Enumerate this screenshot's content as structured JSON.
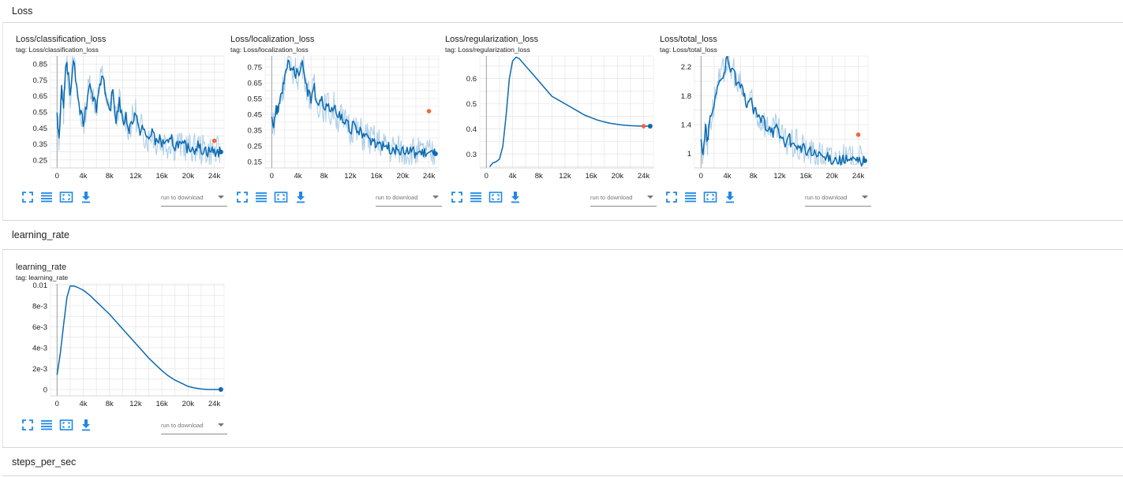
{
  "sections": [
    {
      "title": "Loss"
    },
    {
      "title": "learning_rate"
    },
    {
      "title": "steps_per_sec"
    }
  ],
  "controls": {
    "run_select": "run to download"
  },
  "colors": {
    "line": "#0b6ab0",
    "smoothed_raw": "#a9cde8",
    "latest": "#0b6ab0",
    "compare": "#f4663c",
    "grid": "#e0e0e0"
  },
  "icons": [
    "fit-domain-icon",
    "log-scale-icon",
    "toggle-expand-icon",
    "download-icon"
  ],
  "chart_data": [
    {
      "type": "line",
      "title": "Loss/classification_loss",
      "tag": "tag: Loss/classification_loss",
      "xlim": [
        -1000,
        25500
      ],
      "ylim": [
        0.2,
        0.9
      ],
      "xticks": [
        0,
        4000,
        8000,
        12000,
        16000,
        20000,
        24000
      ],
      "xtick_labels": [
        "0",
        "4k",
        "8k",
        "12k",
        "16k",
        "20k",
        "24k"
      ],
      "yticks": [
        0.25,
        0.35,
        0.45,
        0.55,
        0.65,
        0.75,
        0.85
      ],
      "ytick_labels": [
        "0.25",
        "0.35",
        "0.45",
        "0.55",
        "0.65",
        "0.75",
        "0.85"
      ],
      "series": [
        {
          "x": [
            0,
            300,
            700,
            1000,
            1300,
            1600,
            2000,
            2500,
            3000,
            3500,
            4000,
            4500,
            5000,
            5500,
            6000,
            6500,
            7000,
            7500,
            8000,
            8500,
            9000,
            9500,
            10000,
            10500,
            11000,
            11500,
            12000,
            12500,
            13000,
            13500,
            14000,
            14500,
            15000,
            15500,
            16000,
            16500,
            17000,
            17500,
            18000,
            18500,
            19000,
            19500,
            20000,
            20500,
            21000,
            21500,
            22000,
            22500,
            23000,
            23500,
            24000,
            24500,
            25000
          ],
          "y": [
            0.52,
            0.38,
            0.72,
            0.55,
            0.85,
            0.82,
            0.65,
            0.88,
            0.7,
            0.55,
            0.48,
            0.6,
            0.75,
            0.65,
            0.58,
            0.72,
            0.8,
            0.6,
            0.55,
            0.68,
            0.5,
            0.62,
            0.48,
            0.52,
            0.44,
            0.5,
            0.55,
            0.42,
            0.46,
            0.4,
            0.38,
            0.44,
            0.36,
            0.39,
            0.35,
            0.37,
            0.34,
            0.38,
            0.33,
            0.36,
            0.33,
            0.34,
            0.32,
            0.33,
            0.32,
            0.34,
            0.31,
            0.32,
            0.3,
            0.31,
            0.3,
            0.3,
            0.3
          ]
        }
      ],
      "compare_point": {
        "x": 24000,
        "y": 0.37
      },
      "raw_min": 0.22,
      "raw_max": 0.9
    },
    {
      "type": "line",
      "title": "Loss/localization_loss",
      "tag": "tag: Loss/localization_loss",
      "xlim": [
        -1000,
        25500
      ],
      "ylim": [
        0.11,
        0.82
      ],
      "xticks": [
        0,
        4000,
        8000,
        12000,
        16000,
        20000,
        24000
      ],
      "xtick_labels": [
        "0",
        "4k",
        "8k",
        "12k",
        "16k",
        "20k",
        "24k"
      ],
      "yticks": [
        0.15,
        0.25,
        0.35,
        0.45,
        0.55,
        0.65,
        0.75
      ],
      "ytick_labels": [
        "0.15",
        "0.25",
        "0.35",
        "0.45",
        "0.55",
        "0.65",
        "0.75"
      ],
      "series": [
        {
          "x": [
            0,
            300,
            700,
            1000,
            1300,
            1600,
            2000,
            2500,
            3000,
            3500,
            4000,
            4500,
            5000,
            5500,
            6000,
            6500,
            7000,
            7500,
            8000,
            8500,
            9000,
            9500,
            10000,
            10500,
            11000,
            11500,
            12000,
            12500,
            13000,
            13500,
            14000,
            14500,
            15000,
            15500,
            16000,
            16500,
            17000,
            17500,
            18000,
            18500,
            19000,
            19500,
            20000,
            20500,
            21000,
            21500,
            22000,
            22500,
            23000,
            23500,
            24000,
            24500,
            25000
          ],
          "y": [
            0.45,
            0.38,
            0.5,
            0.46,
            0.55,
            0.6,
            0.68,
            0.78,
            0.75,
            0.72,
            0.7,
            0.78,
            0.72,
            0.6,
            0.55,
            0.62,
            0.5,
            0.56,
            0.48,
            0.52,
            0.45,
            0.5,
            0.42,
            0.45,
            0.38,
            0.42,
            0.35,
            0.38,
            0.33,
            0.35,
            0.3,
            0.33,
            0.28,
            0.3,
            0.26,
            0.28,
            0.24,
            0.26,
            0.23,
            0.24,
            0.22,
            0.23,
            0.21,
            0.22,
            0.21,
            0.22,
            0.2,
            0.21,
            0.2,
            0.21,
            0.2,
            0.2,
            0.2
          ]
        }
      ],
      "compare_point": {
        "x": 24000,
        "y": 0.47
      },
      "raw_min": 0.13,
      "raw_max": 0.82
    },
    {
      "type": "line",
      "title": "Loss/regularization_loss",
      "tag": "tag: Loss/regularization_loss",
      "xlim": [
        -1000,
        25500
      ],
      "ylim": [
        0.245,
        0.69
      ],
      "xticks": [
        0,
        4000,
        8000,
        12000,
        16000,
        20000,
        24000
      ],
      "xtick_labels": [
        "0",
        "4k",
        "8k",
        "12k",
        "16k",
        "20k",
        "24k"
      ],
      "yticks": [
        0.3,
        0.4,
        0.5,
        0.6
      ],
      "ytick_labels": [
        "0.3",
        "0.4",
        "0.5",
        "0.6"
      ],
      "series": [
        {
          "x": [
            500,
            1000,
            1500,
            2000,
            2500,
            3000,
            3500,
            4000,
            4500,
            5000,
            5500,
            6000,
            7000,
            8000,
            9000,
            10000,
            11000,
            12000,
            13000,
            14000,
            15000,
            16000,
            17000,
            18000,
            19000,
            20000,
            21000,
            22000,
            23000,
            24000,
            25000
          ],
          "y": [
            0.25,
            0.265,
            0.27,
            0.28,
            0.33,
            0.45,
            0.6,
            0.67,
            0.685,
            0.68,
            0.665,
            0.65,
            0.62,
            0.59,
            0.56,
            0.53,
            0.515,
            0.5,
            0.485,
            0.47,
            0.455,
            0.445,
            0.435,
            0.428,
            0.422,
            0.418,
            0.415,
            0.413,
            0.412,
            0.411,
            0.411
          ]
        }
      ],
      "compare_point": {
        "x": 24000,
        "y": 0.411
      },
      "raw_min": null,
      "raw_max": null
    },
    {
      "type": "line",
      "title": "Loss/total_loss",
      "tag": "tag: Loss/total_loss",
      "xlim": [
        -1000,
        25500
      ],
      "ylim": [
        0.8,
        2.35
      ],
      "xticks": [
        0,
        4000,
        8000,
        12000,
        16000,
        20000,
        24000
      ],
      "xtick_labels": [
        "0",
        "4k",
        "8k",
        "12k",
        "16k",
        "20k",
        "24k"
      ],
      "yticks": [
        1,
        1.4,
        1.8,
        2.2
      ],
      "ytick_labels": [
        "1",
        "1.4",
        "1.8",
        "2.2"
      ],
      "series": [
        {
          "x": [
            0,
            300,
            700,
            1000,
            1300,
            1600,
            2000,
            2500,
            3000,
            3500,
            4000,
            4500,
            5000,
            5500,
            6000,
            6500,
            7000,
            7500,
            8000,
            8500,
            9000,
            9500,
            10000,
            10500,
            11000,
            11500,
            12000,
            12500,
            13000,
            13500,
            14000,
            14500,
            15000,
            15500,
            16000,
            16500,
            17000,
            17500,
            18000,
            18500,
            19000,
            19500,
            20000,
            20500,
            21000,
            21500,
            22000,
            22500,
            23000,
            23500,
            24000,
            24500,
            25000
          ],
          "y": [
            1.25,
            0.95,
            1.35,
            1.15,
            1.45,
            1.5,
            1.7,
            1.95,
            2.0,
            2.15,
            2.3,
            2.1,
            2.2,
            1.9,
            1.95,
            1.8,
            1.7,
            1.75,
            1.6,
            1.55,
            1.45,
            1.5,
            1.35,
            1.4,
            1.3,
            1.35,
            1.25,
            1.2,
            1.15,
            1.2,
            1.1,
            1.15,
            1.05,
            1.1,
            1.0,
            1.05,
            0.98,
            1.0,
            0.95,
            0.97,
            0.92,
            0.95,
            0.92,
            0.93,
            0.9,
            0.92,
            0.9,
            0.91,
            0.9,
            0.9,
            0.9,
            0.9,
            0.9
          ]
        }
      ],
      "compare_point": {
        "x": 24000,
        "y": 1.26
      },
      "raw_min": 0.85,
      "raw_max": 2.35
    },
    {
      "type": "line",
      "title": "learning_rate",
      "tag": "tag: learning_rate",
      "xlim": [
        -1000,
        25500
      ],
      "ylim": [
        -0.0006,
        0.0101
      ],
      "xticks": [
        0,
        4000,
        8000,
        12000,
        16000,
        20000,
        24000
      ],
      "xtick_labels": [
        "0",
        "4k",
        "8k",
        "12k",
        "16k",
        "20k",
        "24k"
      ],
      "yticks": [
        0,
        0.002,
        0.004,
        0.006,
        0.008,
        0.01
      ],
      "ytick_labels": [
        "0",
        "2e-3",
        "4e-3",
        "6e-3",
        "8e-3",
        "0.01"
      ],
      "series": [
        {
          "x": [
            0,
            500,
            1000,
            1500,
            2000,
            2500,
            3000,
            3500,
            4000,
            5000,
            6000,
            7000,
            8000,
            9000,
            10000,
            11000,
            12000,
            13000,
            14000,
            15000,
            16000,
            17000,
            18000,
            19000,
            20000,
            21000,
            22000,
            23000,
            24000,
            25000
          ],
          "y": [
            0.0014,
            0.0035,
            0.0062,
            0.0088,
            0.0099,
            0.0099,
            0.0098,
            0.00965,
            0.0095,
            0.009,
            0.0084,
            0.0078,
            0.0072,
            0.0065,
            0.0058,
            0.0051,
            0.0044,
            0.0037,
            0.003,
            0.0024,
            0.0018,
            0.0013,
            0.0009,
            0.0006,
            0.0003,
            0.00015,
            5e-05,
            0.0,
            0.0,
            0.0
          ]
        }
      ],
      "compare_point": null,
      "raw_min": null,
      "raw_max": null
    }
  ]
}
